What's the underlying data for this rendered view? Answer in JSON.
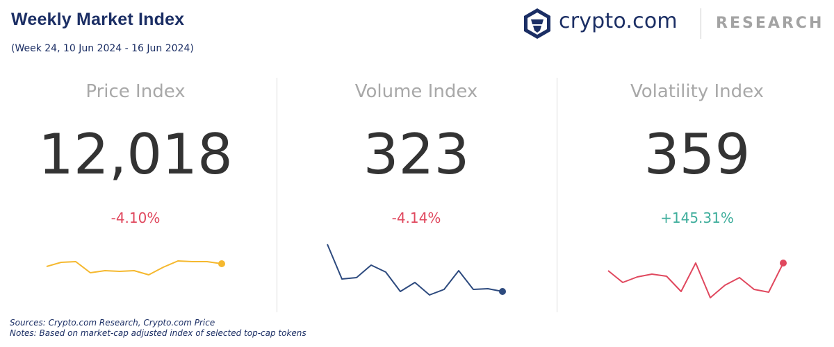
{
  "header": {
    "title": "Weekly Market Index",
    "subtitle": "(Week 24, 10 Jun 2024 - 16 Jun 2024)"
  },
  "logo": {
    "brand": "crypto.com",
    "research": "RESEARCH",
    "icon": "crypto-com-shield-icon",
    "color": "#1b2e64"
  },
  "panels": [
    {
      "title": "Price Index",
      "value": "12,018",
      "change": "-4.10%",
      "change_color": "#e0485e",
      "line_color": "#f5b82e"
    },
    {
      "title": "Volume Index",
      "value": "323",
      "change": "-4.14%",
      "change_color": "#e0485e",
      "line_color": "#2d4a7e"
    },
    {
      "title": "Volatility Index",
      "value": "359",
      "change": "+145.31%",
      "change_color": "#3fae9c",
      "line_color": "#e0485e"
    }
  ],
  "chart_data": [
    {
      "type": "line",
      "series": [
        {
          "values": [
            52,
            46,
            45,
            61,
            58,
            59,
            58,
            64,
            53,
            44,
            45,
            45,
            48
          ]
        }
      ],
      "ylim": [
        0,
        100
      ]
    },
    {
      "type": "line",
      "series": [
        {
          "values": [
            20,
            70,
            68,
            50,
            60,
            88,
            75,
            93,
            85,
            58,
            85,
            84,
            88
          ]
        }
      ],
      "ylim": [
        0,
        100
      ]
    },
    {
      "type": "line",
      "series": [
        {
          "values": [
            58,
            75,
            67,
            63,
            66,
            88,
            47,
            97,
            79,
            68,
            85,
            89,
            47
          ]
        }
      ],
      "ylim": [
        0,
        100
      ]
    }
  ],
  "footer": {
    "sources": "Sources: Crypto.com Research,  Crypto.com Price",
    "notes": "Notes: Based on market-cap adjusted index of selected top-cap tokens"
  }
}
